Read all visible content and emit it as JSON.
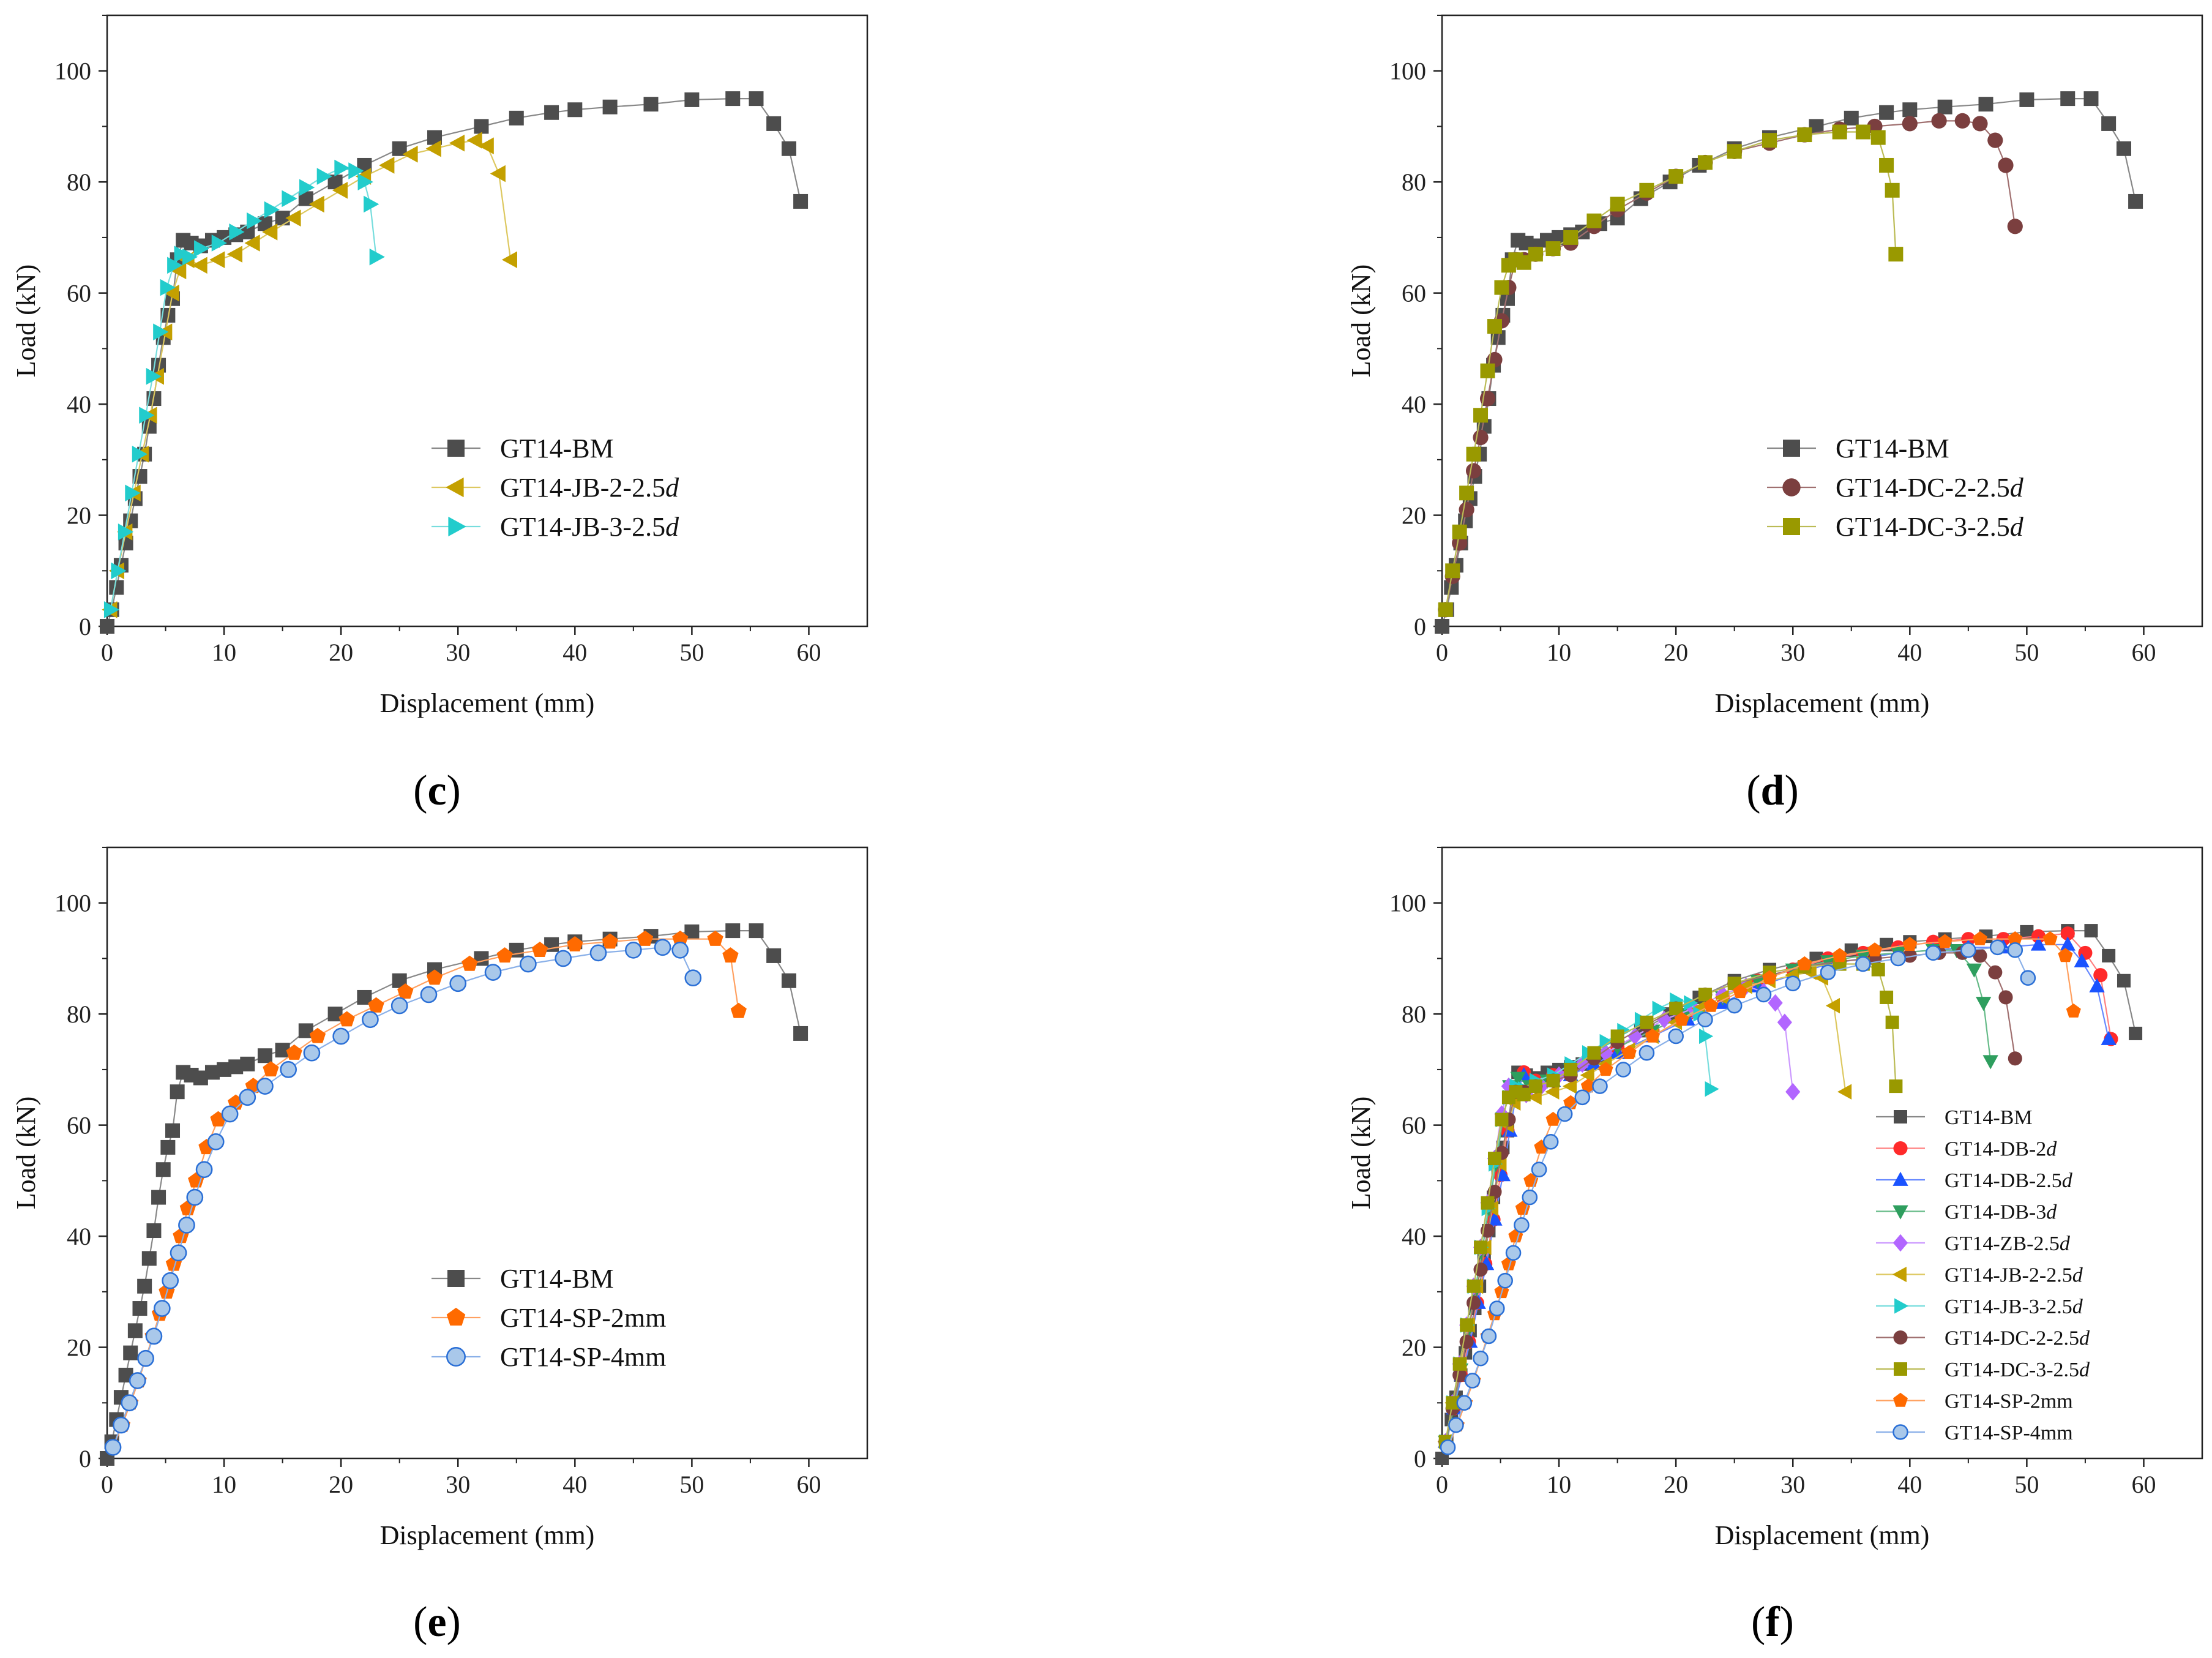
{
  "chart_data": [
    {
      "panel": "c",
      "type": "line",
      "xlabel": "Displacement (mm)",
      "ylabel": "Load (kN)",
      "xlim": [
        0,
        65
      ],
      "ylim": [
        0,
        110
      ],
      "xticks": [
        "0",
        "10",
        "20",
        "30",
        "40",
        "50",
        "60"
      ],
      "yticks": [
        "0",
        "20",
        "40",
        "60",
        "80",
        "100"
      ],
      "legend_position": "lower-right",
      "series": [
        {
          "name": "GT14-BM",
          "style": "BM"
        },
        {
          "name": "GT14-JB-2-2.5",
          "italic_suffix": "d",
          "style": "JB2"
        },
        {
          "name": "GT14-JB-3-2.5",
          "italic_suffix": "d",
          "style": "JB3"
        }
      ]
    },
    {
      "panel": "d",
      "type": "line",
      "xlabel": "Displacement (mm)",
      "ylabel": "Load (kN)",
      "xlim": [
        0,
        65
      ],
      "ylim": [
        0,
        110
      ],
      "xticks": [
        "0",
        "10",
        "20",
        "30",
        "40",
        "50",
        "60"
      ],
      "yticks": [
        "0",
        "20",
        "40",
        "60",
        "80",
        "100"
      ],
      "legend_position": "lower-right",
      "series": [
        {
          "name": "GT14-BM",
          "style": "BM"
        },
        {
          "name": "GT14-DC-2-2.5",
          "italic_suffix": "d",
          "style": "DC2"
        },
        {
          "name": "GT14-DC-3-2.5",
          "italic_suffix": "d",
          "style": "DC3"
        }
      ]
    },
    {
      "panel": "e",
      "type": "line",
      "xlabel": "Displacement (mm)",
      "ylabel": "Load (kN)",
      "xlim": [
        0,
        65
      ],
      "ylim": [
        0,
        110
      ],
      "xticks": [
        "0",
        "10",
        "20",
        "30",
        "40",
        "50",
        "60"
      ],
      "yticks": [
        "0",
        "20",
        "40",
        "60",
        "80",
        "100"
      ],
      "legend_position": "lower-right",
      "series": [
        {
          "name": "GT14-BM",
          "style": "BM"
        },
        {
          "name": "GT14-SP-2mm",
          "style": "SP2"
        },
        {
          "name": "GT14-SP-4mm",
          "style": "SP4"
        }
      ]
    },
    {
      "panel": "f",
      "type": "line",
      "xlabel": "Displacement (mm)",
      "ylabel": "Load (kN)",
      "xlim": [
        0,
        65
      ],
      "ylim": [
        0,
        110
      ],
      "xticks": [
        "0",
        "10",
        "20",
        "30",
        "40",
        "50",
        "60"
      ],
      "yticks": [
        "0",
        "20",
        "40",
        "60",
        "80",
        "100"
      ],
      "legend_position": "lower-right",
      "series": [
        {
          "name": "GT14-BM",
          "style": "BM"
        },
        {
          "name": "GT14-DB-2",
          "italic_suffix": "d",
          "style": "DB2"
        },
        {
          "name": "GT14-DB-2.5",
          "italic_suffix": "d",
          "style": "DB25"
        },
        {
          "name": "GT14-DB-3",
          "italic_suffix": "d",
          "style": "DB3"
        },
        {
          "name": "GT14-ZB-2.5",
          "italic_suffix": "d",
          "style": "ZB"
        },
        {
          "name": "GT14-JB-2-2.5",
          "italic_suffix": "d",
          "style": "JB2"
        },
        {
          "name": "GT14-JB-3-2.5",
          "italic_suffix": "d",
          "style": "JB3"
        },
        {
          "name": "GT14-DC-2-2.5",
          "italic_suffix": "d",
          "style": "DC2"
        },
        {
          "name": "GT14-DC-3-2.5",
          "italic_suffix": "d",
          "style": "DC3"
        },
        {
          "name": "GT14-SP-2mm",
          "style": "SP2"
        },
        {
          "name": "GT14-SP-4mm",
          "style": "SP4"
        }
      ]
    }
  ],
  "series_data": {
    "BM": {
      "color": "#4d4d4d",
      "line": "#888888",
      "marker": "square",
      "x": [
        0,
        0.4,
        0.8,
        1.2,
        1.6,
        2,
        2.4,
        2.8,
        3.2,
        3.6,
        4,
        4.4,
        4.8,
        5.2,
        5.6,
        6,
        6.5,
        7.2,
        8,
        9,
        10,
        11,
        12,
        13.5,
        15,
        17,
        19.5,
        22,
        25,
        28,
        32,
        35,
        38,
        40,
        43,
        46.5,
        50,
        53.5,
        55.5,
        57,
        58.3,
        59.3
      ],
      "y": [
        0,
        3,
        7,
        11,
        15,
        19,
        23,
        27,
        31,
        36,
        41,
        47,
        52,
        56,
        59,
        66,
        69.5,
        69,
        68.5,
        69.5,
        70,
        70.5,
        71,
        72.5,
        73.5,
        77,
        80,
        83,
        86,
        88,
        90,
        91.5,
        92.5,
        93,
        93.5,
        94,
        94.8,
        95,
        95,
        90.5,
        86,
        76.5
      ]
    },
    "DB2": {
      "color": "#ff2a2a",
      "line": "#ff8080",
      "marker": "circle",
      "x": [
        0.3,
        1,
        1.6,
        2.3,
        3,
        3.7,
        4.4,
        5,
        5.6,
        6.3,
        7,
        8,
        9.5,
        11,
        13,
        15,
        18,
        21,
        24,
        27,
        30,
        33,
        36,
        39,
        42,
        45,
        48,
        51,
        53.5,
        55,
        56.3,
        57.2
      ],
      "y": [
        3,
        9,
        15,
        21,
        28,
        35,
        43,
        51,
        59,
        66,
        69.5,
        68,
        69,
        70,
        72,
        74,
        77,
        80,
        83,
        86,
        88,
        90,
        91,
        92,
        93,
        93.5,
        93.5,
        94,
        94.5,
        91,
        87,
        75.5
      ]
    },
    "DB25": {
      "color": "#1a53ff",
      "line": "#6688ff",
      "marker": "triangle-up",
      "x": [
        0.3,
        1,
        1.7,
        2.4,
        3.1,
        3.8,
        4.5,
        5.2,
        5.8,
        6.4,
        7,
        8,
        9.5,
        11,
        13,
        15,
        18,
        21,
        24,
        27,
        30,
        33,
        36,
        39,
        42,
        45,
        48,
        51,
        53.5,
        54.7,
        56,
        57
      ],
      "y": [
        3,
        9,
        15,
        21,
        28,
        35,
        43,
        51,
        59,
        66,
        69,
        67,
        68,
        69,
        71,
        73,
        76,
        79,
        82,
        85,
        87,
        89,
        90,
        91,
        91.5,
        92,
        92,
        92.5,
        92.5,
        89.5,
        85,
        75.5
      ]
    },
    "DB3": {
      "color": "#2e9e5e",
      "line": "#66bb88",
      "marker": "triangle-down",
      "x": [
        0.3,
        1,
        1.6,
        2.2,
        2.8,
        3.4,
        4,
        4.6,
        5.2,
        5.8,
        6.5,
        7.5,
        9,
        11,
        13,
        15,
        18,
        21,
        24,
        27,
        30,
        33,
        36,
        39,
        42,
        44,
        45.5,
        46.3,
        46.9
      ],
      "y": [
        3,
        9,
        16,
        23,
        30,
        37,
        45,
        53,
        61,
        67,
        68.5,
        67,
        68,
        70,
        72,
        74,
        77,
        80,
        83,
        86,
        88,
        89.5,
        90.5,
        91,
        91.5,
        91.5,
        88,
        82,
        71.5
      ]
    },
    "ZB": {
      "color": "#b266ff",
      "line": "#cc99ff",
      "marker": "diamond",
      "x": [
        0.3,
        0.9,
        1.5,
        2.1,
        2.7,
        3.3,
        3.9,
        4.5,
        5.1,
        5.7,
        6.3,
        7.2,
        8.5,
        10,
        12,
        14,
        16.5,
        19,
        21.5,
        24,
        26,
        27.5,
        28.5,
        29.3,
        30
      ],
      "y": [
        3,
        10,
        17,
        24,
        31,
        38,
        46,
        54,
        62,
        67,
        66,
        65.5,
        67,
        69,
        71,
        73,
        76,
        79,
        81,
        83.5,
        85,
        84,
        82,
        78.5,
        66
      ]
    },
    "JB2": {
      "color": "#c4a000",
      "line": "#ddc860",
      "marker": "triangle-left",
      "x": [
        0.3,
        0.9,
        1.6,
        2.3,
        3,
        3.7,
        4.3,
        5,
        5.6,
        6.2,
        6.9,
        8,
        9.5,
        11,
        12.5,
        14,
        16,
        18,
        20,
        22,
        24,
        26,
        28,
        30,
        31.5,
        32.5,
        33.5,
        34.5
      ],
      "y": [
        3,
        10,
        17,
        24,
        31,
        38,
        45,
        53,
        60,
        64,
        66,
        65,
        66,
        67,
        69,
        71,
        73.5,
        76,
        78.5,
        81,
        83,
        85,
        86,
        87,
        87.5,
        86.5,
        81.5,
        66
      ]
    },
    "JB3": {
      "color": "#22cccc",
      "line": "#77dddd",
      "marker": "triangle-right",
      "x": [
        0.3,
        0.9,
        1.5,
        2.1,
        2.7,
        3.3,
        3.9,
        4.5,
        5.1,
        5.7,
        6.3,
        7,
        8,
        9.5,
        11,
        12.5,
        14,
        15.5,
        17,
        18.5,
        20,
        21.2,
        22,
        22.5,
        23
      ],
      "y": [
        3,
        10,
        17,
        24,
        31,
        38,
        45,
        53,
        61,
        65,
        67,
        66.5,
        68,
        69,
        71,
        73,
        75,
        77,
        79,
        81,
        82.5,
        82,
        80,
        76,
        66.5
      ]
    },
    "DC2": {
      "color": "#7b3f3f",
      "line": "#a07070",
      "marker": "circle",
      "x": [
        0.3,
        0.9,
        1.5,
        2.1,
        2.7,
        3.3,
        3.9,
        4.5,
        5.1,
        5.7,
        6.3,
        7,
        8,
        9.5,
        11,
        13,
        15,
        17.5,
        20,
        22.5,
        25,
        28,
        31,
        34,
        37,
        40,
        42.5,
        44.5,
        46,
        47.3,
        48.2,
        49
      ],
      "y": [
        3,
        9,
        15,
        21,
        28,
        34,
        41,
        48,
        55,
        61,
        66,
        66,
        67,
        68,
        69,
        72,
        75,
        78,
        81,
        83.5,
        85.5,
        87,
        88.5,
        89.5,
        90,
        90.5,
        91,
        91,
        90.5,
        87.5,
        83,
        72
      ]
    },
    "DC3": {
      "color": "#999900",
      "line": "#bbbb55",
      "marker": "square",
      "x": [
        0.3,
        0.9,
        1.5,
        2.1,
        2.7,
        3.3,
        3.9,
        4.5,
        5.1,
        5.7,
        6.3,
        7,
        8,
        9.5,
        11,
        13,
        15,
        17.5,
        20,
        22.5,
        25,
        28,
        31,
        34,
        36,
        37.3,
        38,
        38.5,
        38.8
      ],
      "y": [
        3,
        10,
        17,
        24,
        31,
        38,
        46,
        54,
        61,
        65,
        66,
        65.5,
        67,
        68,
        70,
        73,
        76,
        78.5,
        81,
        83.5,
        85.5,
        87.5,
        88.5,
        89,
        89,
        88,
        83,
        78.5,
        67
      ]
    },
    "SP2": {
      "color": "#ff6a00",
      "line": "#ffa060",
      "marker": "pentagon",
      "x": [
        0.5,
        1.3,
        2,
        2.7,
        3.3,
        3.9,
        4.5,
        5.1,
        5.7,
        6.3,
        6.9,
        7.6,
        8.5,
        9.5,
        11,
        12.5,
        14,
        16,
        18,
        20.5,
        23,
        25.5,
        28,
        31,
        34,
        37,
        40,
        43,
        46,
        49,
        52,
        53.3,
        54
      ],
      "y": [
        2,
        6,
        10,
        14,
        18,
        22,
        26,
        30,
        35,
        40,
        45,
        50,
        56,
        61,
        64,
        67,
        70,
        73,
        76,
        79,
        81.5,
        84,
        86.5,
        89,
        90.5,
        91.5,
        92.5,
        93,
        93.5,
        93.5,
        93.5,
        90.5,
        80.5
      ]
    },
    "SP4": {
      "color": "#2a6fd6",
      "line": "#8ab0e8",
      "marker": "ring",
      "x": [
        0.5,
        1.2,
        1.9,
        2.6,
        3.3,
        4,
        4.7,
        5.4,
        6.1,
        6.8,
        7.5,
        8.3,
        9.3,
        10.5,
        12,
        13.5,
        15.5,
        17.5,
        20,
        22.5,
        25,
        27.5,
        30,
        33,
        36,
        39,
        42,
        45,
        47.5,
        49,
        50.1
      ],
      "y": [
        2,
        6,
        10,
        14,
        18,
        22,
        27,
        32,
        37,
        42,
        47,
        52,
        57,
        62,
        65,
        67,
        70,
        73,
        76,
        79,
        81.5,
        83.5,
        85.5,
        87.5,
        89,
        90,
        91,
        91.5,
        92,
        91.5,
        86.5
      ]
    }
  },
  "panel_labels": [
    {
      "open": "(",
      "letter": "c",
      "close": ")"
    },
    {
      "open": "(",
      "letter": "d",
      "close": ")"
    },
    {
      "open": "(",
      "letter": "e",
      "close": ")"
    },
    {
      "open": "(",
      "letter": "f",
      "close": ")"
    }
  ]
}
